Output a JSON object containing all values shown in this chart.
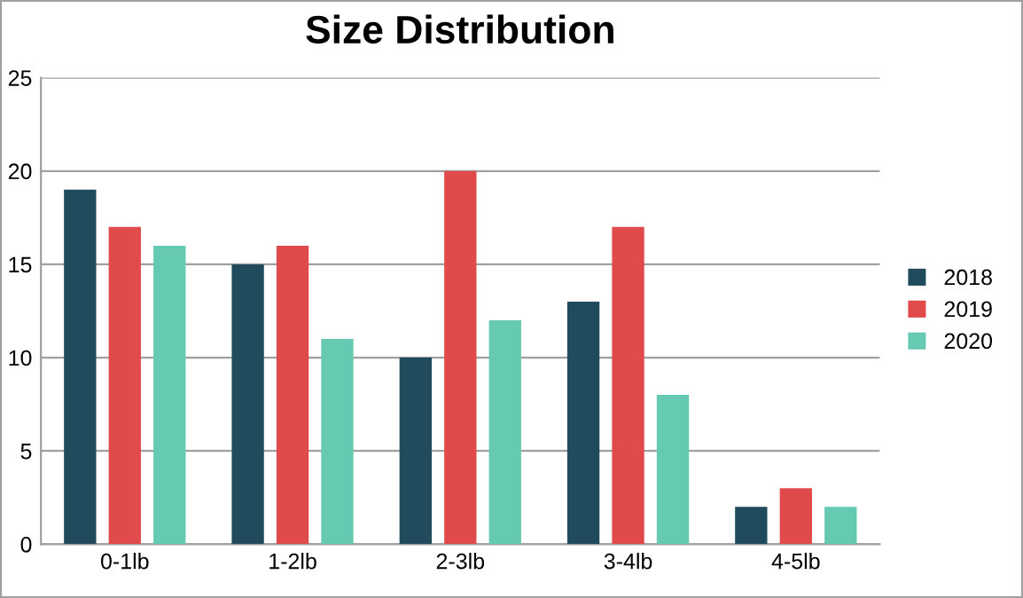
{
  "chart_data": {
    "type": "bar",
    "title": "Size Distribution",
    "categories": [
      "0-1lb",
      "1-2lb",
      "2-3lb",
      "3-4lb",
      "4-5lb"
    ],
    "series": [
      {
        "name": "2018",
        "color": "#1f4b5c",
        "values": [
          19,
          15,
          10,
          13,
          2
        ]
      },
      {
        "name": "2019",
        "color": "#e04a4a",
        "values": [
          17,
          16,
          20,
          17,
          3
        ]
      },
      {
        "name": "2020",
        "color": "#66c9b2",
        "values": [
          16,
          11,
          12,
          8,
          2
        ]
      }
    ],
    "ylim": [
      0,
      25
    ],
    "yticks": [
      0,
      5,
      10,
      15,
      20,
      25
    ],
    "grid": "y",
    "legend": "right"
  }
}
